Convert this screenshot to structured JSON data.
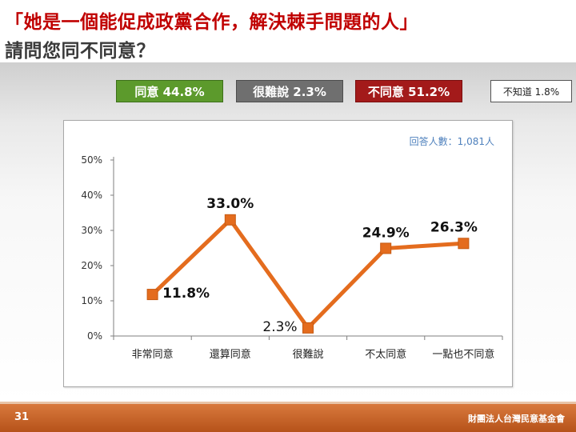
{
  "title": {
    "line1": "「她是一個能促成政黨合作，解決棘手問題的人」",
    "line2": "請問您同不同意？"
  },
  "summary": {
    "agree": "同意 44.8%",
    "hard_to_say": "很難說 2.3%",
    "disagree": "不同意 51.2%",
    "unknown": "不知道 1.8%"
  },
  "colors": {
    "title": "#c00000",
    "agree": "#5c9a2c",
    "hard_to_say": "#6f6f6f",
    "disagree": "#a31a1a",
    "line": "#e46c1e",
    "respondents": "#4f81bd",
    "footer": "#c0602a"
  },
  "chart_data": {
    "type": "line",
    "categories": [
      "非常同意",
      "還算同意",
      "很難說",
      "不太同意",
      "一點也不同意"
    ],
    "values": [
      11.8,
      33.0,
      2.3,
      24.9,
      26.3
    ],
    "data_labels": [
      "11.8%",
      "33.0%",
      "2.3%",
      "24.9%",
      "26.3%"
    ],
    "ylim": [
      0,
      50
    ],
    "yticks": [
      "0%",
      "10%",
      "20%",
      "30%",
      "40%",
      "50%"
    ],
    "annotation": "回答人數：1,081人",
    "grid": false
  },
  "footer": {
    "page_number": "31",
    "organization": "財團法人台灣民意基金會"
  }
}
